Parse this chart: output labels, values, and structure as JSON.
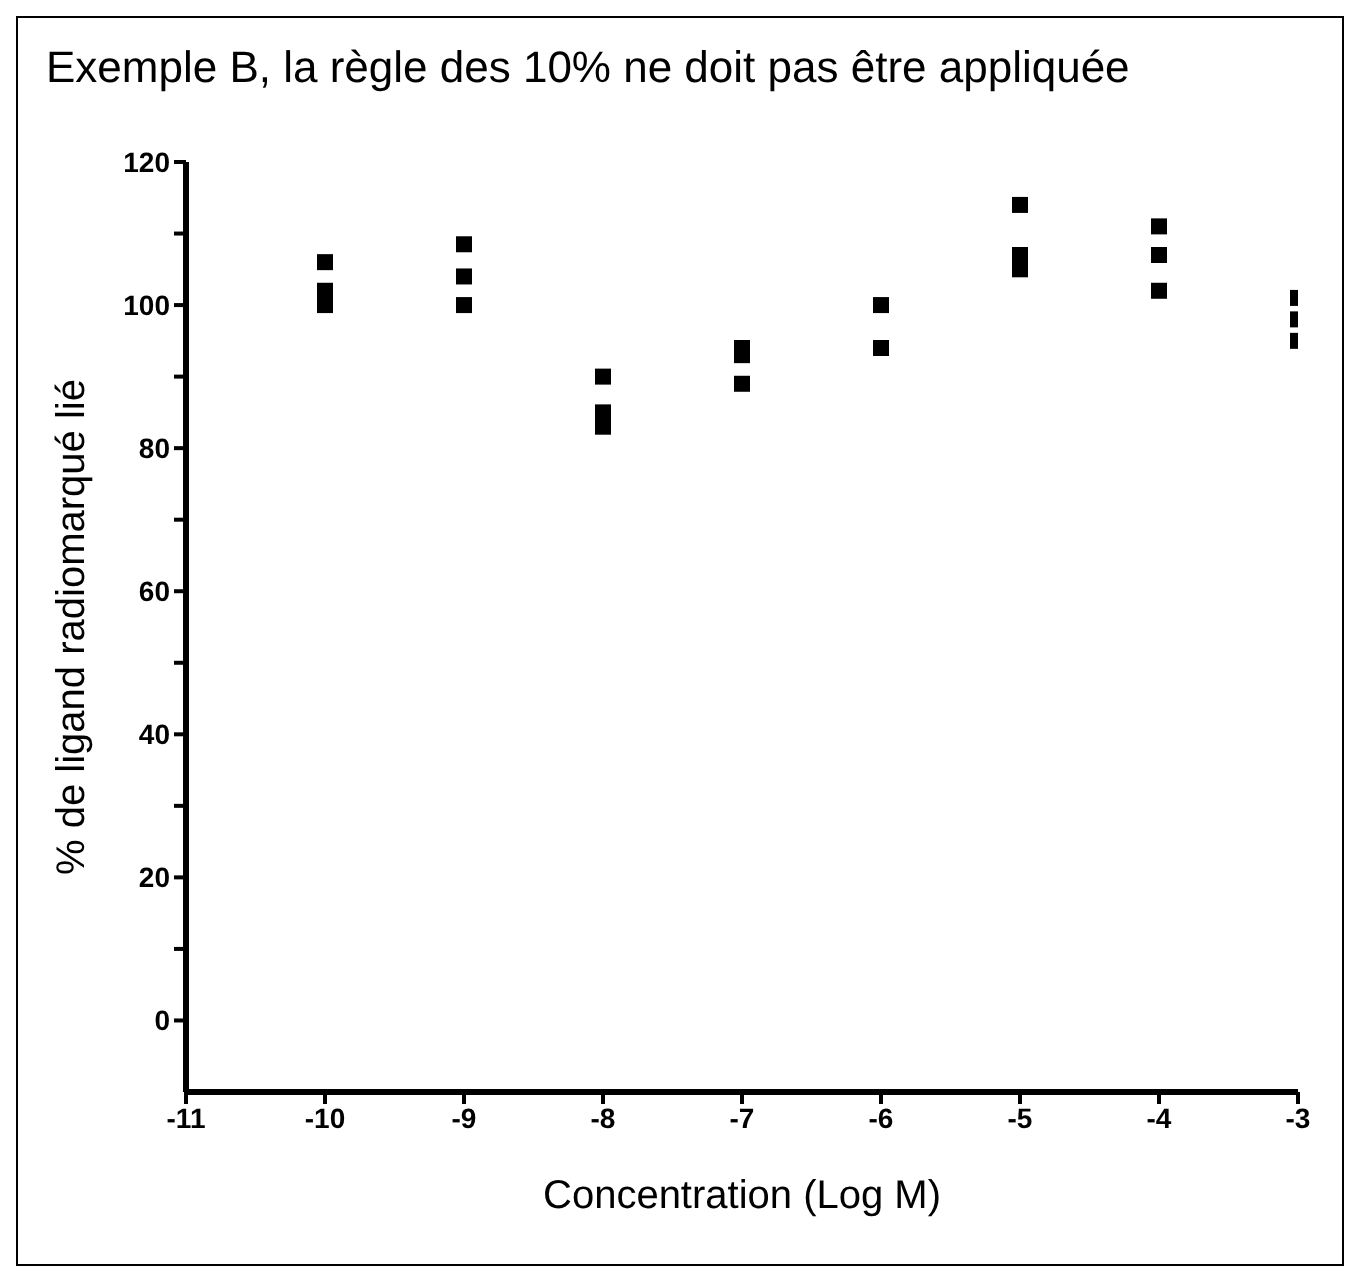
{
  "chart_data": {
    "type": "scatter",
    "title": "Exemple B, la règle des 10% ne doit pas être appliquée",
    "xlabel": "Concentration (Log M)",
    "ylabel": "% de ligand radiomarqué lié",
    "x": [
      -10,
      -10,
      -10,
      -9,
      -9,
      -9,
      -8,
      -8,
      -8,
      -7,
      -7,
      -7,
      -6,
      -6,
      -5,
      -5,
      -5,
      -4,
      -4,
      -4,
      -3,
      -3,
      -3
    ],
    "series": [
      {
        "color": "#000000",
        "values": [
          106,
          102,
          100,
          108.5,
          104,
          100,
          90,
          85,
          83,
          94,
          93,
          89,
          100,
          94,
          114,
          107,
          105,
          111,
          107,
          102,
          101,
          98,
          95
        ]
      }
    ],
    "xlim": [
      -11,
      -3
    ],
    "xticks": [
      -11,
      -10,
      -9,
      -8,
      -7,
      -6,
      -5,
      -4,
      -3
    ],
    "ylim": [
      -10,
      120
    ],
    "yticks": [
      0,
      {
        "value": 10,
        "label": null
      },
      20,
      {
        "value": 30,
        "label": null
      },
      40,
      {
        "value": 50,
        "label": null
      },
      60,
      {
        "value": 70,
        "label": null
      },
      80,
      {
        "value": 90,
        "label": null
      },
      100,
      {
        "value": 110,
        "label": null
      },
      120
    ],
    "marker": "square",
    "grid": false,
    "legend": false
  }
}
